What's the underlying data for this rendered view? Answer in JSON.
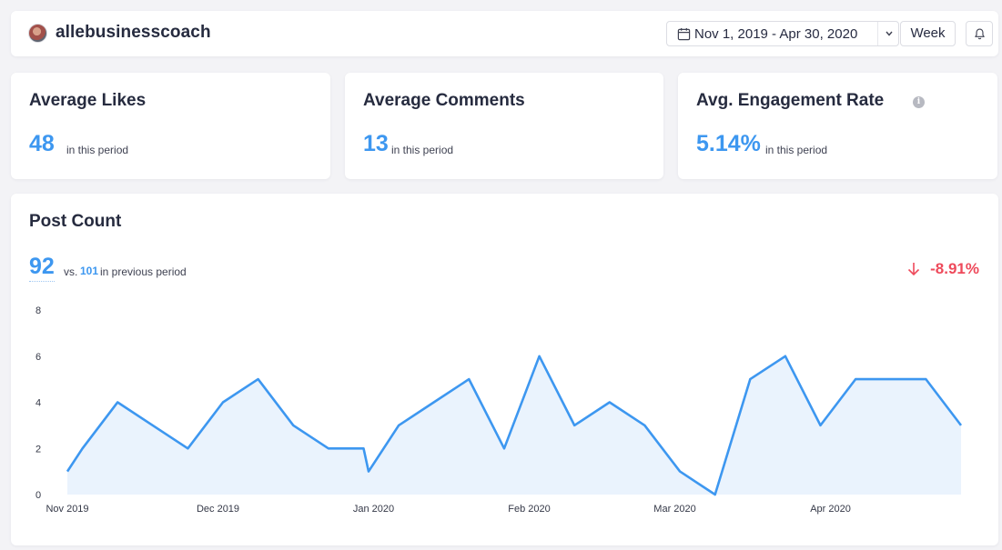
{
  "header": {
    "account_name": "allebusinesscoach",
    "date_range": "Nov 1, 2019 - Apr 30, 2020",
    "interval": "Week",
    "icons": [
      "avatar",
      "calendar-icon",
      "chevron-down-icon",
      "bell-icon"
    ]
  },
  "stats": [
    {
      "title": "Average Likes",
      "value": "48",
      "note": "in this period"
    },
    {
      "title": "Average Comments",
      "value": "13",
      "note": "in this period"
    },
    {
      "title": "Avg. Engagement Rate",
      "value": "5.14%",
      "note": "in this period",
      "info_icon": "i"
    }
  ],
  "post_count": {
    "title": "Post Count",
    "value": "92",
    "vs_label": "vs.",
    "previous_value": "101",
    "previous_note": "in previous period",
    "change": "-8.91%"
  },
  "colors": {
    "accent": "#3d97f0",
    "negative": "#ee4a5b",
    "area_fill": "#eaf3fd",
    "background": "#f3f3f6"
  },
  "chart_data": {
    "type": "area",
    "title": "",
    "xlabel": "",
    "ylabel": "",
    "ylim": [
      0,
      8
    ],
    "y_ticks": [
      0,
      2,
      4,
      6,
      8
    ],
    "x_tick_labels": [
      "Nov 2019",
      "Dec 2019",
      "Jan 2020",
      "Feb 2020",
      "Mar 2020",
      "Apr 2020"
    ],
    "grid": false,
    "legend": "none",
    "series": [
      {
        "x": [
          "2019-11-01",
          "2019-11-04",
          "2019-11-11",
          "2019-11-18",
          "2019-11-25",
          "2019-12-02",
          "2019-12-09",
          "2019-12-16",
          "2019-12-23",
          "2019-12-30",
          "2019-12-31",
          "2020-01-06",
          "2020-01-13",
          "2020-01-20",
          "2020-01-27",
          "2020-02-03",
          "2020-02-10",
          "2020-02-17",
          "2020-02-24",
          "2020-03-02",
          "2020-03-09",
          "2020-03-16",
          "2020-03-23",
          "2020-03-30",
          "2020-04-06",
          "2020-04-13",
          "2020-04-20",
          "2020-04-27"
        ],
        "values": [
          1,
          2,
          4,
          3,
          2,
          4,
          5,
          3,
          2,
          2,
          1,
          3,
          4,
          5,
          2,
          6,
          3,
          4,
          3,
          1,
          0,
          5,
          6,
          3,
          5,
          5,
          5,
          3
        ]
      }
    ]
  }
}
